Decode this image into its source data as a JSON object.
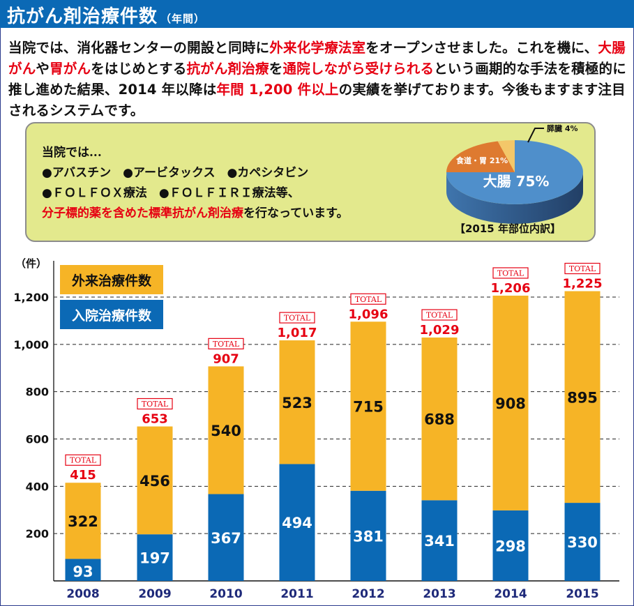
{
  "header": {
    "title": "抗がん剤治療件数",
    "subtitle": "（年間）"
  },
  "intro": {
    "segments": [
      {
        "text": "当院では、消化器センターの開設と同時に",
        "red": false
      },
      {
        "text": "外来化学療法室",
        "red": true
      },
      {
        "text": "をオープンさせました。これを機に、",
        "red": false
      },
      {
        "text": "大腸がん",
        "red": true
      },
      {
        "text": "や",
        "red": false
      },
      {
        "text": "胃がん",
        "red": true
      },
      {
        "text": "をはじめとする",
        "red": false
      },
      {
        "text": "抗がん剤治療",
        "red": true
      },
      {
        "text": "を",
        "red": false
      },
      {
        "text": "通院しながら受けられる",
        "red": true
      },
      {
        "text": "という画期的な手法を積極的に推し進めた結果、2014 年以降は",
        "red": false
      },
      {
        "text": "年間 1,200 件以上",
        "red": true
      },
      {
        "text": "の実績を挙げております。今後もますます注目されるシステムです。",
        "red": false
      }
    ]
  },
  "info": {
    "line1": "当院では...",
    "line2": "●アバスチン　●アービタックス　●カペシタビン",
    "line3": "●ＦＯＬＦＯＸ療法　●ＦＯＬＦＩＲＩ療法等、",
    "line4_red": "分子標的薬を含めた標準抗がん剤治療",
    "line4_rest": "を行なっています。"
  },
  "colors": {
    "inpatient": "#0b69b5",
    "outpatient": "#f6b426",
    "total": "#e60012",
    "year": "#1f2a7a",
    "pie_colon": "#4f8fcb",
    "pie_stomach": "#de7a30",
    "pie_pancreas": "#f3c769"
  },
  "chart_data": [
    {
      "type": "pie",
      "title": "【2015 年部位内訳】",
      "slices": [
        {
          "label": "大腸",
          "value": 75,
          "display": "大腸 75%"
        },
        {
          "label": "食道・胃",
          "value": 21,
          "display": "食道・胃 21%"
        },
        {
          "label": "膵臓",
          "value": 4,
          "display": "膵臓 4%"
        }
      ]
    },
    {
      "type": "bar",
      "stacked": true,
      "title": "抗がん剤治療件数（年間）",
      "ylabel": "（件）",
      "xlabel": "",
      "ylim": [
        0,
        1300
      ],
      "yticks": [
        200,
        400,
        600,
        800,
        1000,
        1200
      ],
      "ytick_labels": [
        "200",
        "400",
        "600",
        "800",
        "1,000",
        "1,200"
      ],
      "grid": true,
      "legend": "top-left",
      "categories": [
        "2008",
        "2009",
        "2010",
        "2011",
        "2012",
        "2013",
        "2014",
        "2015"
      ],
      "series": [
        {
          "name": "入院治療件数",
          "values": [
            93,
            197,
            367,
            494,
            381,
            341,
            298,
            330
          ]
        },
        {
          "name": "外来治療件数",
          "values": [
            322,
            456,
            540,
            523,
            715,
            688,
            908,
            895
          ]
        }
      ],
      "totals": [
        415,
        653,
        907,
        1017,
        1096,
        1029,
        1206,
        1225
      ],
      "total_labels": [
        "415",
        "653",
        "907",
        "1,017",
        "1,096",
        "1,029",
        "1,206",
        "1,225"
      ],
      "total_badge": "TOTAL"
    }
  ]
}
